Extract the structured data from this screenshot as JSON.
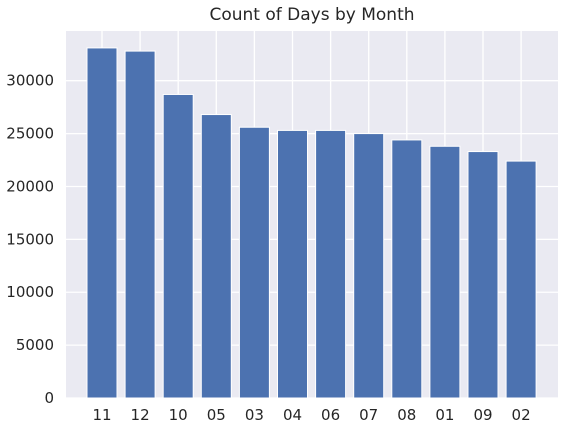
{
  "chart_data": {
    "type": "bar",
    "title": "Count of Days by Month",
    "xlabel": "",
    "ylabel": "",
    "categories": [
      "11",
      "12",
      "10",
      "05",
      "03",
      "04",
      "06",
      "07",
      "08",
      "01",
      "09",
      "02"
    ],
    "values": [
      33100,
      32800,
      28700,
      26800,
      25600,
      25300,
      25300,
      25000,
      24400,
      23800,
      23300,
      22400
    ],
    "ylim": [
      0,
      34700
    ],
    "yticks": [
      0,
      5000,
      10000,
      15000,
      20000,
      25000,
      30000
    ],
    "grid": true,
    "colors": {
      "bar": "#4c72b0",
      "background": "#eaeaf2",
      "grid": "#ffffff"
    }
  }
}
